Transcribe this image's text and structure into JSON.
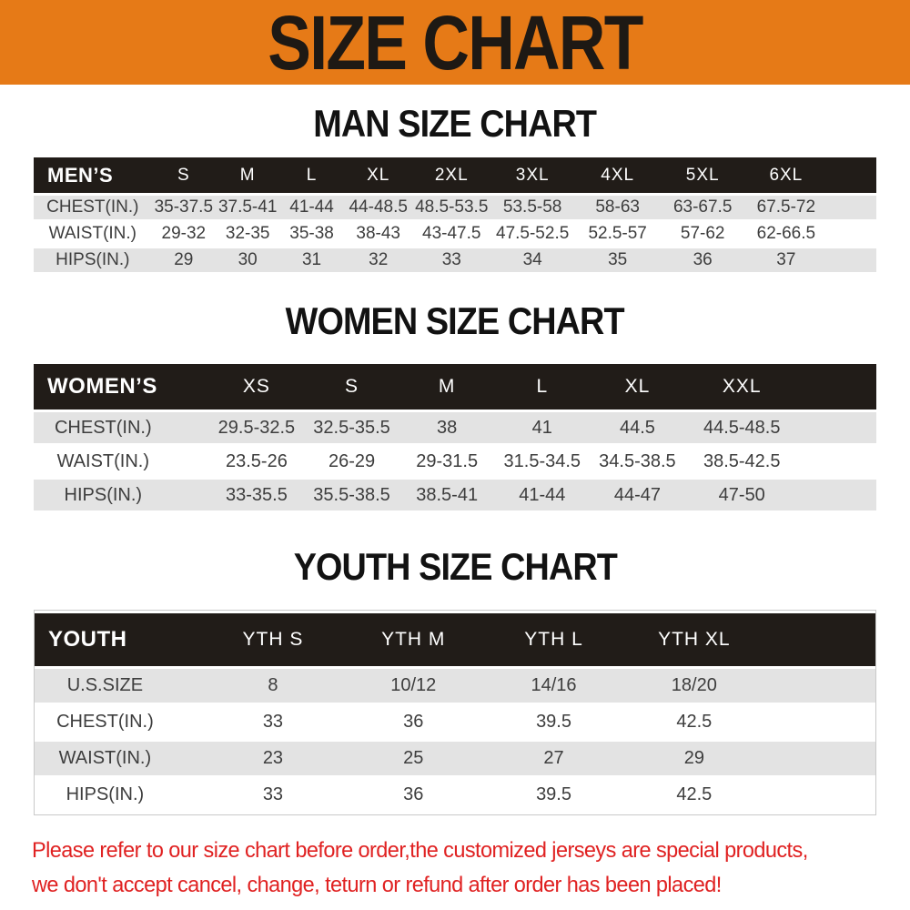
{
  "banner": {
    "title": "SIZE CHART"
  },
  "colors": {
    "banner_bg": "#E67A17",
    "table_header_bg": "#211C18",
    "row_stripe_bg": "#E3E3E3",
    "footer_text": "#E02222"
  },
  "sections": [
    {
      "id": "men",
      "heading": "MAN SIZE CHART",
      "table": {
        "header": [
          "MEN’S",
          "S",
          "M",
          "L",
          "XL",
          "2XL",
          "3XL",
          "4XL",
          "5XL",
          "6XL"
        ],
        "rows": [
          [
            "CHEST(IN.)",
            "35-37.5",
            "37.5-41",
            "41-44",
            "44-48.5",
            "48.5-53.5",
            "53.5-58",
            "58-63",
            "63-67.5",
            "67.5-72"
          ],
          [
            "WAIST(IN.)",
            "29-32",
            "32-35",
            "35-38",
            "38-43",
            "43-47.5",
            "47.5-52.5",
            "52.5-57",
            "57-62",
            "62-66.5"
          ],
          [
            "HIPS(IN.)",
            "29",
            "30",
            "31",
            "32",
            "33",
            "34",
            "35",
            "36",
            "37"
          ]
        ]
      }
    },
    {
      "id": "women",
      "heading": "WOMEN SIZE CHART",
      "table": {
        "header": [
          "WOMEN’S",
          "XS",
          "S",
          "M",
          "L",
          "XL",
          "XXL"
        ],
        "rows": [
          [
            "CHEST(IN.)",
            "29.5-32.5",
            "32.5-35.5",
            "38",
            "41",
            "44.5",
            "44.5-48.5"
          ],
          [
            "WAIST(IN.)",
            "23.5-26",
            "26-29",
            "29-31.5",
            "31.5-34.5",
            "34.5-38.5",
            "38.5-42.5"
          ],
          [
            "HIPS(IN.)",
            "33-35.5",
            "35.5-38.5",
            "38.5-41",
            "41-44",
            "44-47",
            "47-50"
          ]
        ]
      }
    },
    {
      "id": "youth",
      "heading": "YOUTH SIZE CHART",
      "table": {
        "header": [
          "YOUTH",
          "YTH S",
          "YTH M",
          "YTH L",
          "YTH XL"
        ],
        "rows": [
          [
            "U.S.SIZE",
            "8",
            "10/12",
            "14/16",
            "18/20"
          ],
          [
            "CHEST(IN.)",
            "33",
            "36",
            "39.5",
            "42.5"
          ],
          [
            "WAIST(IN.)",
            "23",
            "25",
            "27",
            "29"
          ],
          [
            "HIPS(IN.)",
            "33",
            "36",
            "39.5",
            "42.5"
          ]
        ]
      }
    }
  ],
  "footer": {
    "lines": [
      "Please refer to our size chart before order,the customized jerseys are special products,",
      "we don't accept cancel, change, teturn or refund after order has been placed!"
    ]
  }
}
